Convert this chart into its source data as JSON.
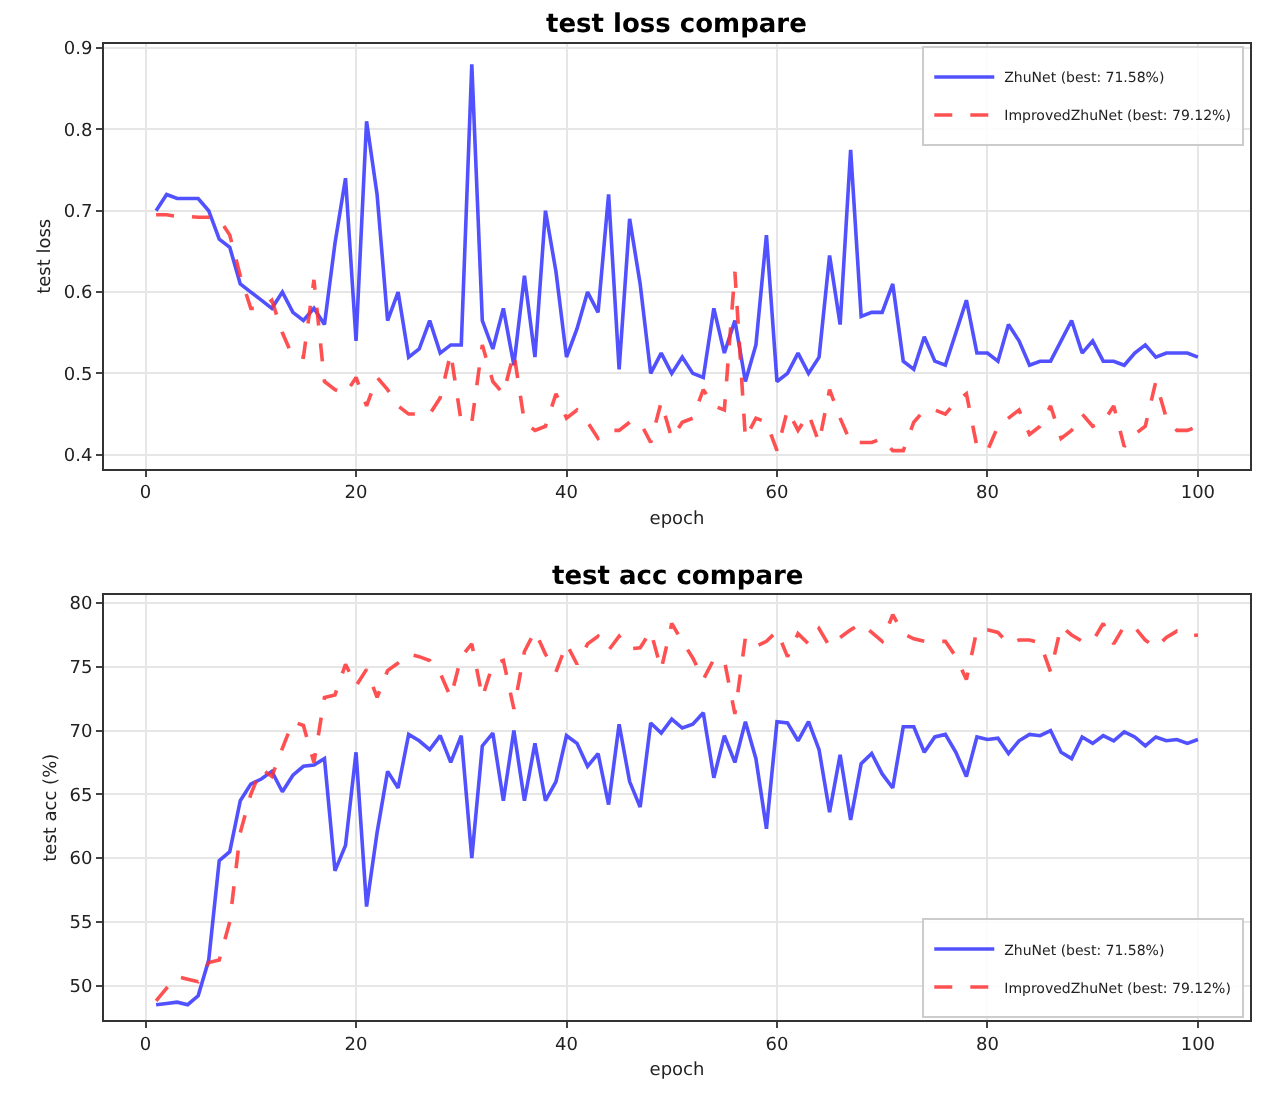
{
  "chart_data": [
    {
      "type": "line",
      "title": "test loss compare",
      "xlabel": "epoch",
      "ylabel": "test loss",
      "grid": true,
      "legend": "top right",
      "xlim": [
        -3.95,
        104.95
      ],
      "xticks": [
        0,
        20,
        40,
        60,
        80,
        100
      ],
      "ylim": [
        0.383,
        0.905
      ],
      "yticks": [
        0.4,
        0.5,
        0.6,
        0.7,
        0.8,
        0.9
      ],
      "x": [
        1,
        2,
        3,
        4,
        5,
        6,
        7,
        8,
        9,
        10,
        11,
        12,
        13,
        14,
        15,
        16,
        17,
        18,
        19,
        20,
        21,
        22,
        23,
        24,
        25,
        26,
        27,
        28,
        29,
        30,
        31,
        32,
        33,
        34,
        35,
        36,
        37,
        38,
        39,
        40,
        41,
        42,
        43,
        44,
        45,
        46,
        47,
        48,
        49,
        50,
        51,
        52,
        53,
        54,
        55,
        56,
        57,
        58,
        59,
        60,
        61,
        62,
        63,
        64,
        65,
        66,
        67,
        68,
        69,
        70,
        71,
        72,
        73,
        74,
        75,
        76,
        77,
        78,
        79,
        80,
        81,
        82,
        83,
        84,
        85,
        86,
        87,
        88,
        89,
        90,
        91,
        92,
        93,
        94,
        95,
        96,
        97,
        98,
        99,
        100
      ],
      "series": [
        {
          "name": "ZhuNet (best: 71.58%)",
          "color": "#3333ff",
          "line_style": "solid",
          "values": [
            0.7,
            0.72,
            0.715,
            0.715,
            0.715,
            0.7,
            0.665,
            0.655,
            0.61,
            0.6,
            0.59,
            0.58,
            0.6,
            0.575,
            0.565,
            0.58,
            0.56,
            0.66,
            0.74,
            0.54,
            0.81,
            0.72,
            0.565,
            0.6,
            0.52,
            0.53,
            0.565,
            0.525,
            0.535,
            0.535,
            0.88,
            0.565,
            0.53,
            0.58,
            0.51,
            0.62,
            0.52,
            0.7,
            0.625,
            0.52,
            0.555,
            0.6,
            0.575,
            0.72,
            0.505,
            0.69,
            0.61,
            0.5,
            0.525,
            0.5,
            0.52,
            0.5,
            0.495,
            0.58,
            0.525,
            0.565,
            0.49,
            0.535,
            0.67,
            0.49,
            0.5,
            0.525,
            0.5,
            0.52,
            0.645,
            0.56,
            0.775,
            0.57,
            0.575,
            0.575,
            0.61,
            0.515,
            0.505,
            0.545,
            0.515,
            0.51,
            0.55,
            0.59,
            0.525,
            0.525,
            0.515,
            0.56,
            0.54,
            0.51,
            0.515,
            0.515,
            0.54,
            0.565,
            0.525,
            0.54,
            0.515,
            0.515,
            0.51,
            0.525,
            0.535,
            0.52,
            0.525,
            0.525,
            0.525,
            0.52
          ]
        },
        {
          "name": "ImprovedZhuNet (best: 79.12%)",
          "color": "#ff3333",
          "line_style": "dashed",
          "values": [
            0.695,
            0.695,
            0.693,
            0.693,
            0.692,
            0.692,
            0.69,
            0.67,
            0.62,
            0.58,
            0.58,
            0.59,
            0.55,
            0.52,
            0.52,
            0.615,
            0.49,
            0.48,
            0.475,
            0.495,
            0.46,
            0.495,
            0.48,
            0.46,
            0.45,
            0.45,
            0.45,
            0.47,
            0.525,
            0.44,
            0.44,
            0.535,
            0.49,
            0.475,
            0.525,
            0.44,
            0.43,
            0.435,
            0.475,
            0.445,
            0.455,
            0.44,
            0.42,
            0.43,
            0.43,
            0.44,
            0.44,
            0.415,
            0.465,
            0.42,
            0.44,
            0.445,
            0.48,
            0.46,
            0.455,
            0.625,
            0.42,
            0.445,
            0.44,
            0.405,
            0.455,
            0.43,
            0.45,
            0.415,
            0.48,
            0.445,
            0.415,
            0.415,
            0.415,
            0.42,
            0.405,
            0.405,
            0.44,
            0.455,
            0.455,
            0.45,
            0.465,
            0.475,
            0.41,
            0.405,
            0.435,
            0.445,
            0.455,
            0.425,
            0.435,
            0.46,
            0.42,
            0.43,
            0.45,
            0.435,
            0.44,
            0.46,
            0.41,
            0.425,
            0.435,
            0.49,
            0.445,
            0.43,
            0.43,
            0.435
          ]
        }
      ]
    },
    {
      "type": "line",
      "title": "test acc compare",
      "xlabel": "epoch",
      "ylabel": "test acc (%)",
      "grid": true,
      "legend": "bottom right",
      "xlim": [
        -3.95,
        104.95
      ],
      "xticks": [
        0,
        20,
        40,
        60,
        80,
        100
      ],
      "ylim": [
        47.3,
        80.6
      ],
      "yticks": [
        50,
        55,
        60,
        65,
        70,
        75,
        80
      ],
      "x": [
        1,
        2,
        3,
        4,
        5,
        6,
        7,
        8,
        9,
        10,
        11,
        12,
        13,
        14,
        15,
        16,
        17,
        18,
        19,
        20,
        21,
        22,
        23,
        24,
        25,
        26,
        27,
        28,
        29,
        30,
        31,
        32,
        33,
        34,
        35,
        36,
        37,
        38,
        39,
        40,
        41,
        42,
        43,
        44,
        45,
        46,
        47,
        48,
        49,
        50,
        51,
        52,
        53,
        54,
        55,
        56,
        57,
        58,
        59,
        60,
        61,
        62,
        63,
        64,
        65,
        66,
        67,
        68,
        69,
        70,
        71,
        72,
        73,
        74,
        75,
        76,
        77,
        78,
        79,
        80,
        81,
        82,
        83,
        84,
        85,
        86,
        87,
        88,
        89,
        90,
        91,
        92,
        93,
        94,
        95,
        96,
        97,
        98,
        99,
        100
      ],
      "series": [
        {
          "name": "ZhuNet (best: 71.58%)",
          "color": "#3333ff",
          "line_style": "solid",
          "values": [
            48.5,
            48.6,
            48.7,
            48.5,
            49.2,
            52,
            59.8,
            60.5,
            64.5,
            65.8,
            66.2,
            66.8,
            65.2,
            66.5,
            67.2,
            67.3,
            67.8,
            59,
            61,
            68.3,
            56.2,
            62,
            66.8,
            65.5,
            69.7,
            69.2,
            68.5,
            69.6,
            67.5,
            69.6,
            60,
            68.8,
            69.8,
            64.5,
            70,
            64.5,
            69,
            64.5,
            66,
            69.6,
            69,
            67.2,
            68.2,
            64.2,
            70.5,
            66,
            64,
            70.6,
            69.8,
            70.9,
            70.2,
            70.5,
            71.4,
            66.3,
            69.6,
            67.5,
            70.7,
            67.8,
            62.3,
            70.7,
            70.6,
            69.2,
            70.7,
            68.5,
            63.6,
            68.1,
            63,
            67.4,
            68.2,
            66.6,
            65.5,
            70.3,
            70.3,
            68.3,
            69.5,
            69.7,
            68.3,
            66.4,
            69.5,
            69.3,
            69.4,
            68.2,
            69.2,
            69.7,
            69.6,
            70,
            68.3,
            67.8,
            69.5,
            69.0,
            69.6,
            69.2,
            69.9,
            69.5,
            68.8,
            69.5,
            69.2,
            69.3,
            69.0,
            69.3
          ]
        },
        {
          "name": "ImprovedZhuNet (best: 79.12%)",
          "color": "#ff3333",
          "line_style": "dashed",
          "values": [
            48.8,
            49.8,
            50.7,
            50.5,
            50.3,
            51.8,
            52,
            55,
            62,
            65,
            67,
            66.4,
            68.6,
            70.7,
            70.4,
            67.5,
            72.6,
            72.8,
            75.2,
            73.5,
            74.8,
            72.6,
            74.7,
            75.3,
            76,
            75.8,
            75.5,
            74.5,
            72.6,
            75.8,
            76.8,
            72.6,
            75.2,
            75.5,
            71.7,
            76.2,
            77.8,
            76,
            74.6,
            76.8,
            75.2,
            76.8,
            77.4,
            76.3,
            77.4,
            76.4,
            76.5,
            77.8,
            74.8,
            78.4,
            77,
            75.7,
            74,
            75.6,
            75.5,
            71.3,
            77.3,
            76.6,
            77.0,
            77.8,
            75.8,
            77.6,
            76.8,
            78,
            76.6,
            77.3,
            77.9,
            78.4,
            77.7,
            77.0,
            79.1,
            77.6,
            77.2,
            77.0,
            77.0,
            77.0,
            75.8,
            74.0,
            77.9,
            77.9,
            77.7,
            76.8,
            77.1,
            77.1,
            76.9,
            74.6,
            78.2,
            77.5,
            77.0,
            77.0,
            78.4,
            76.8,
            78.2,
            78.1,
            77.1,
            76.5,
            77.3,
            77.8,
            77.4,
            77.5
          ]
        }
      ]
    }
  ]
}
